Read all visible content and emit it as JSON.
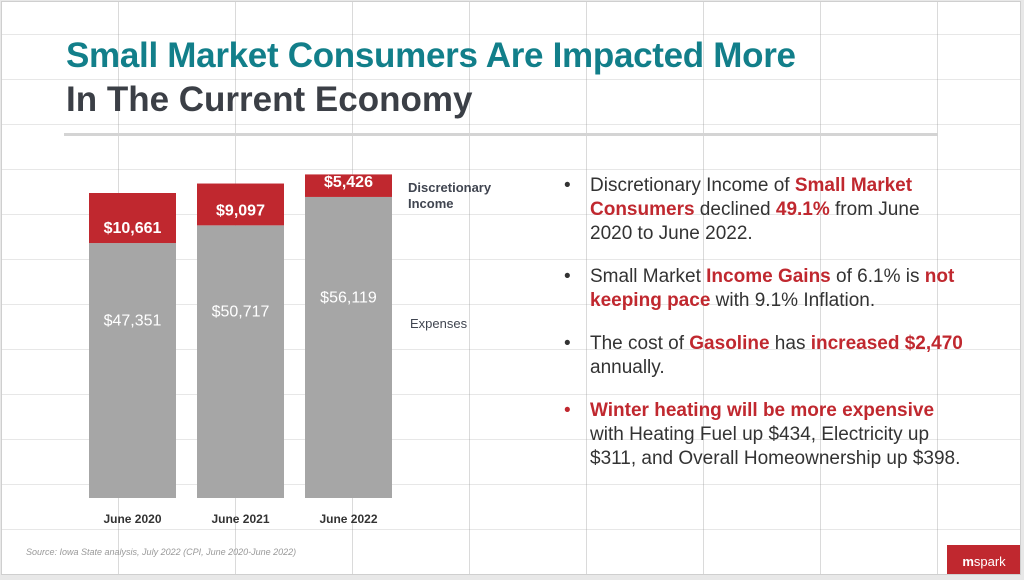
{
  "title": {
    "line1": "Small Market Consumers Are Impacted More",
    "line2": "In The Current Economy"
  },
  "chart_data": {
    "type": "bar",
    "stacked": true,
    "categories": [
      "June 2020",
      "June 2021",
      "June 2022"
    ],
    "series": [
      {
        "name": "Expenses",
        "values": [
          47351,
          50717,
          56119
        ],
        "labels": [
          "$47,351",
          "$50,717",
          "$56,119"
        ],
        "color": "#a6a6a6"
      },
      {
        "name": "Discretionary Income",
        "values": [
          10661,
          9097,
          5426
        ],
        "labels": [
          "$10,661",
          "$9,097",
          "$5,426"
        ],
        "color": "#c0282f"
      }
    ],
    "legend": {
      "discretionary": "Discretionary Income",
      "expenses": "Expenses",
      "placement": "right"
    },
    "ylim": [
      0,
      62000
    ]
  },
  "bullets": [
    {
      "parts": [
        [
          "Discretionary Income of ",
          false
        ],
        [
          "Small Market Consumers",
          true
        ],
        [
          " declined ",
          false
        ],
        [
          "49.1%",
          true
        ],
        [
          " from June 2020 to June 2022.",
          false
        ]
      ]
    },
    {
      "parts": [
        [
          "Small Market ",
          false
        ],
        [
          "Income Gains",
          true
        ],
        [
          " of 6.1% is ",
          false
        ],
        [
          "not keeping pace",
          true
        ],
        [
          " with 9.1% Inflation.",
          false
        ]
      ]
    },
    {
      "parts": [
        [
          "The cost of ",
          false
        ],
        [
          "Gasoline",
          true
        ],
        [
          " has ",
          false
        ],
        [
          "increased $2,470",
          true
        ],
        [
          " annually.",
          false
        ]
      ]
    },
    {
      "red": true,
      "parts": [
        [
          "Winter heating will be more expensive",
          true
        ],
        [
          " with Heating Fuel up $434, Electricity up $311, and Overall Homeownership up $398.",
          false
        ]
      ]
    }
  ],
  "source": "Source: Iowa State analysis, July 2022 (CPI, June 2020-June 2022)",
  "logo": {
    "m": "m",
    "rest": "spark"
  }
}
